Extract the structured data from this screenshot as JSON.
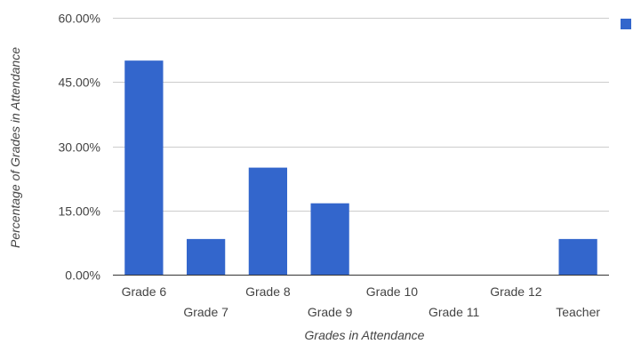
{
  "chart_data": {
    "type": "bar",
    "title": "",
    "xlabel": "Grades in Attendance",
    "ylabel": "Percentage of Grades in Attendance",
    "categories": [
      "Grade 6",
      "Grade 7",
      "Grade 8",
      "Grade 9",
      "Grade 10",
      "Grade 11",
      "Grade 12",
      "Teacher"
    ],
    "series": [
      {
        "values": [
          50.0,
          8.33,
          25.0,
          16.67,
          0,
          0,
          0,
          8.33
        ]
      }
    ],
    "y_ticks": [
      "0.00%",
      "15.00%",
      "30.00%",
      "45.00%",
      "60.00%"
    ],
    "y_tick_values": [
      0,
      15,
      30,
      45,
      60
    ],
    "ylim": [
      0,
      60
    ],
    "grid": true,
    "legend": "right",
    "colors": {
      "bar": "#3366cc",
      "grid": "#cccccc",
      "axis": "#333333"
    }
  }
}
